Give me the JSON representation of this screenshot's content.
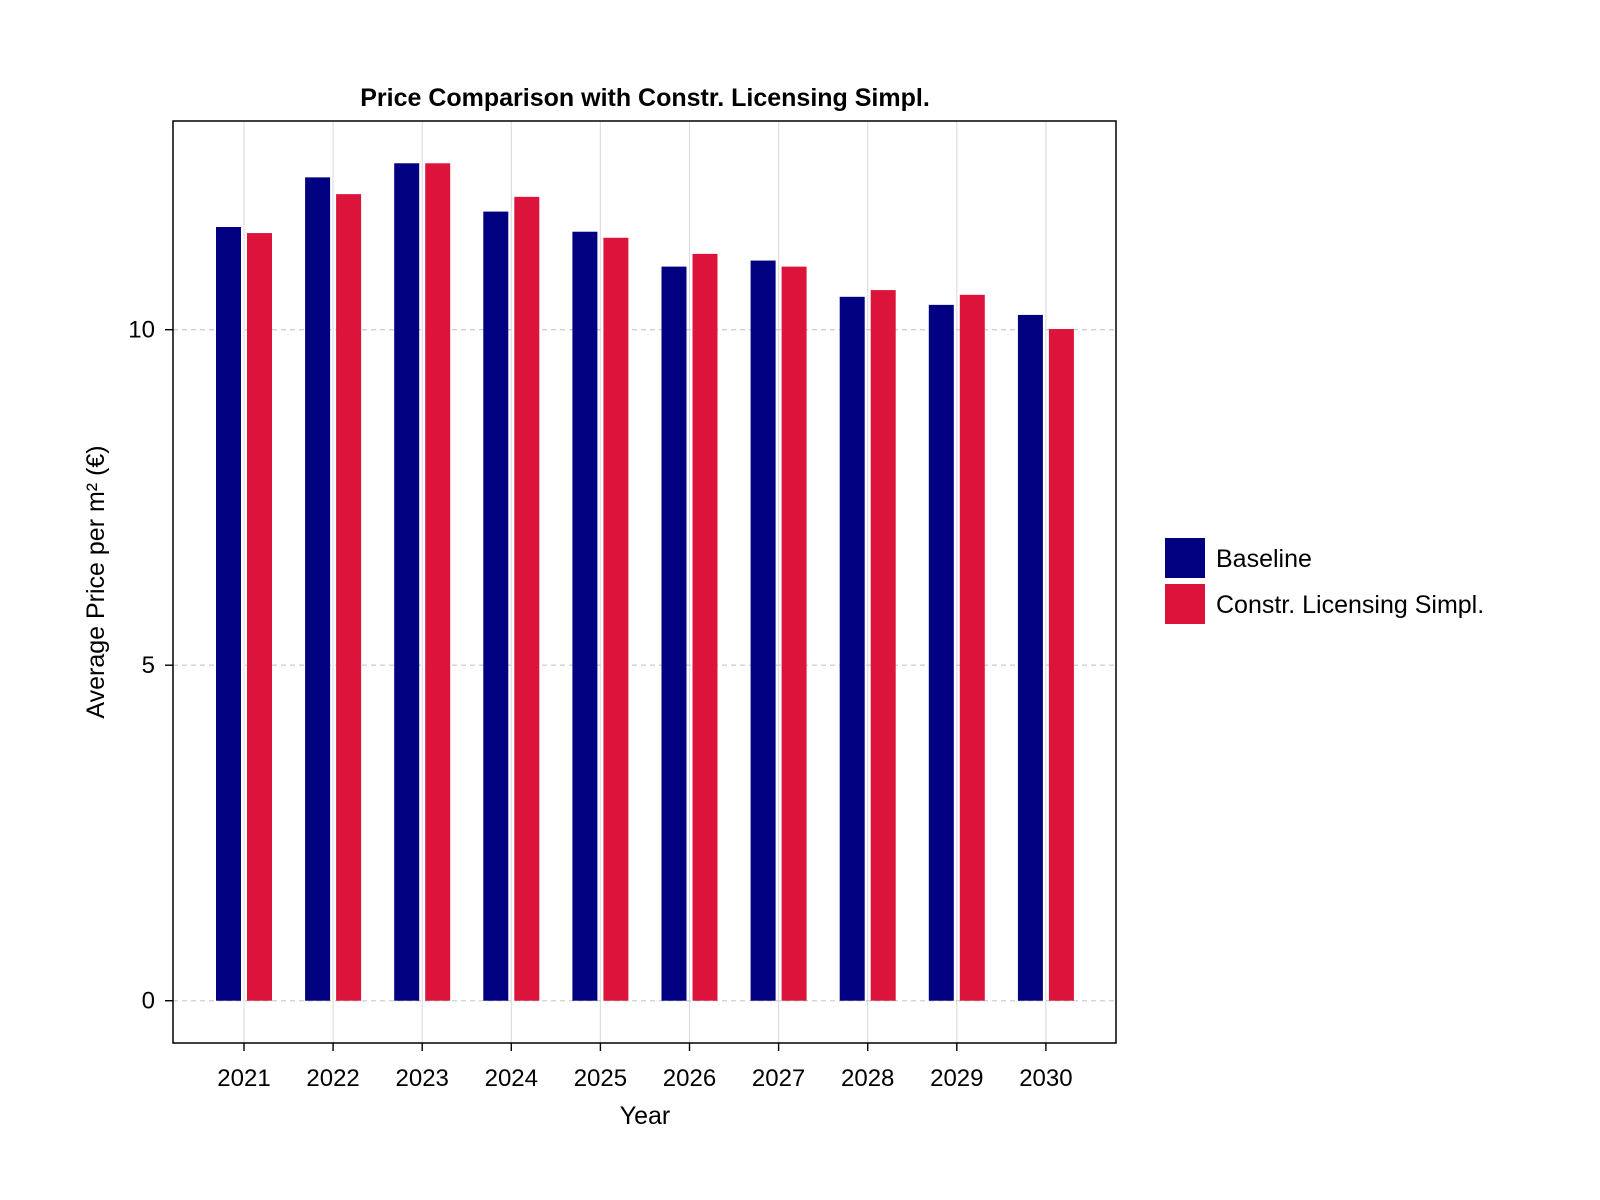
{
  "chart_data": {
    "type": "bar",
    "title": "Price Comparison with Constr. Licensing Simpl.",
    "xlabel": "Year",
    "ylabel": "Average Price per m² (€)",
    "categories": [
      "2021",
      "2022",
      "2023",
      "2024",
      "2025",
      "2026",
      "2027",
      "2028",
      "2029",
      "2030"
    ],
    "series": [
      {
        "name": "Baseline",
        "color": "#000080",
        "values": [
          11.53,
          12.27,
          12.48,
          11.76,
          11.46,
          10.94,
          11.03,
          10.49,
          10.37,
          10.22
        ]
      },
      {
        "name": "Constr. Licensing Simpl.",
        "color": "#dc143c",
        "values": [
          11.44,
          12.02,
          12.48,
          11.98,
          11.37,
          11.13,
          10.94,
          10.59,
          10.52,
          10.01
        ]
      }
    ],
    "ylim": [
      -0.63,
      13.11
    ],
    "yticks": [
      0,
      5,
      10
    ],
    "grid": true,
    "legend": "right"
  }
}
